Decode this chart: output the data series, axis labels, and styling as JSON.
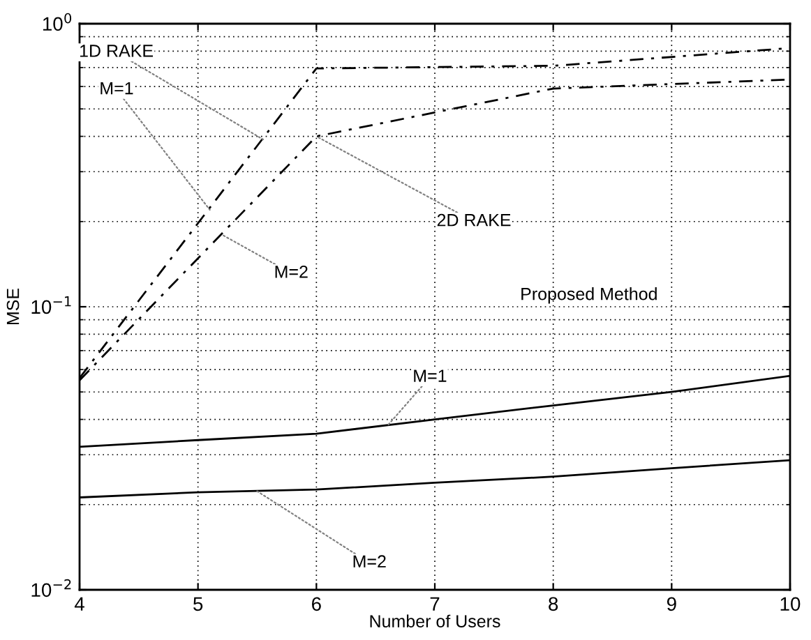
{
  "chart_data": {
    "type": "line",
    "xlabel": "Number of Users",
    "ylabel": "MSE",
    "log": "y",
    "xlim": [
      4,
      10
    ],
    "xticks": [
      4,
      5,
      6,
      7,
      8,
      9,
      10
    ],
    "ylim": [
      0.01,
      1
    ],
    "yticks": [
      {
        "value": 0.01,
        "label": "10$^{−2}$"
      },
      {
        "value": 0.1,
        "label": "10$^{−1}$"
      },
      {
        "value": 1,
        "label": "10$^{0}$"
      }
    ],
    "grid": true,
    "marker": "none",
    "series": [
      {
        "color": "#000000",
        "line_style": "dashed",
        "x": [
          4,
          6,
          8,
          10
        ],
        "values": [
          0.056,
          0.695,
          0.71,
          0.82
        ]
      },
      {
        "color": "#000000",
        "line_style": "dashed",
        "x": [
          4,
          6,
          8,
          10
        ],
        "values": [
          0.055,
          0.4,
          0.59,
          0.635
        ]
      },
      {
        "color": "#000000",
        "line_style": "solid",
        "x": [
          4,
          5,
          6,
          7,
          8,
          9,
          10
        ],
        "values": [
          0.032,
          0.0338,
          0.0356,
          0.04,
          0.0448,
          0.05,
          0.057
        ]
      },
      {
        "color": "#000000",
        "line_style": "solid",
        "x": [
          4,
          5,
          6,
          7,
          8,
          9,
          10
        ],
        "values": [
          0.0212,
          0.0221,
          0.0226,
          0.0239,
          0.0251,
          0.0269,
          0.0287
        ]
      }
    ],
    "annotations": [
      {
        "text": "1D RAKE",
        "x": 5.55,
        "y": 0.39
      },
      {
        "text": "M=1",
        "x": 5.1,
        "y": 0.22
      },
      {
        "text": "2D RAKE",
        "x": 6,
        "y": 0.4
      },
      {
        "text": "M=2",
        "x": 5.2,
        "y": 0.18
      },
      "Proposed Method",
      {
        "text": "M=1",
        "x": 6.6,
        "y": 0.038
      },
      {
        "text": "M=2",
        "x": 5.5,
        "y": 0.0223
      }
    ]
  }
}
